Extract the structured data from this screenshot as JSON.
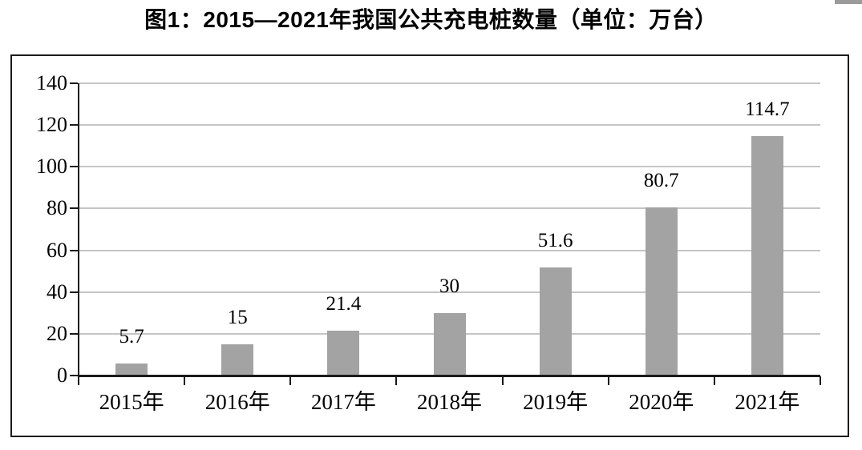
{
  "title": "图1：2015—2021年我国公共充电桩数量（单位：万台）",
  "chart_data": {
    "type": "bar",
    "title": "图1：2015—2021年我国公共充电桩数量（单位：万台）",
    "categories": [
      "2015年",
      "2016年",
      "2017年",
      "2018年",
      "2019年",
      "2020年",
      "2021年"
    ],
    "values": [
      5.7,
      15,
      21.4,
      30,
      51.6,
      80.7,
      114.7
    ],
    "value_labels": [
      "5.7",
      "15",
      "21.4",
      "30",
      "51.6",
      "80.7",
      "114.7"
    ],
    "xlabel": "",
    "ylabel": "",
    "unit": "万台",
    "ylim": [
      0,
      140
    ],
    "yticks": [
      0,
      20,
      40,
      60,
      80,
      100,
      120,
      140
    ],
    "grid": true,
    "legend": "none",
    "colors": {
      "bar": "#a3a3a3",
      "gridline": "#c5c5c5",
      "axis": "#1a1a1a",
      "frame_border": "#1b1b1b",
      "text": "#000000",
      "artifact": "#9b9b9b"
    }
  }
}
